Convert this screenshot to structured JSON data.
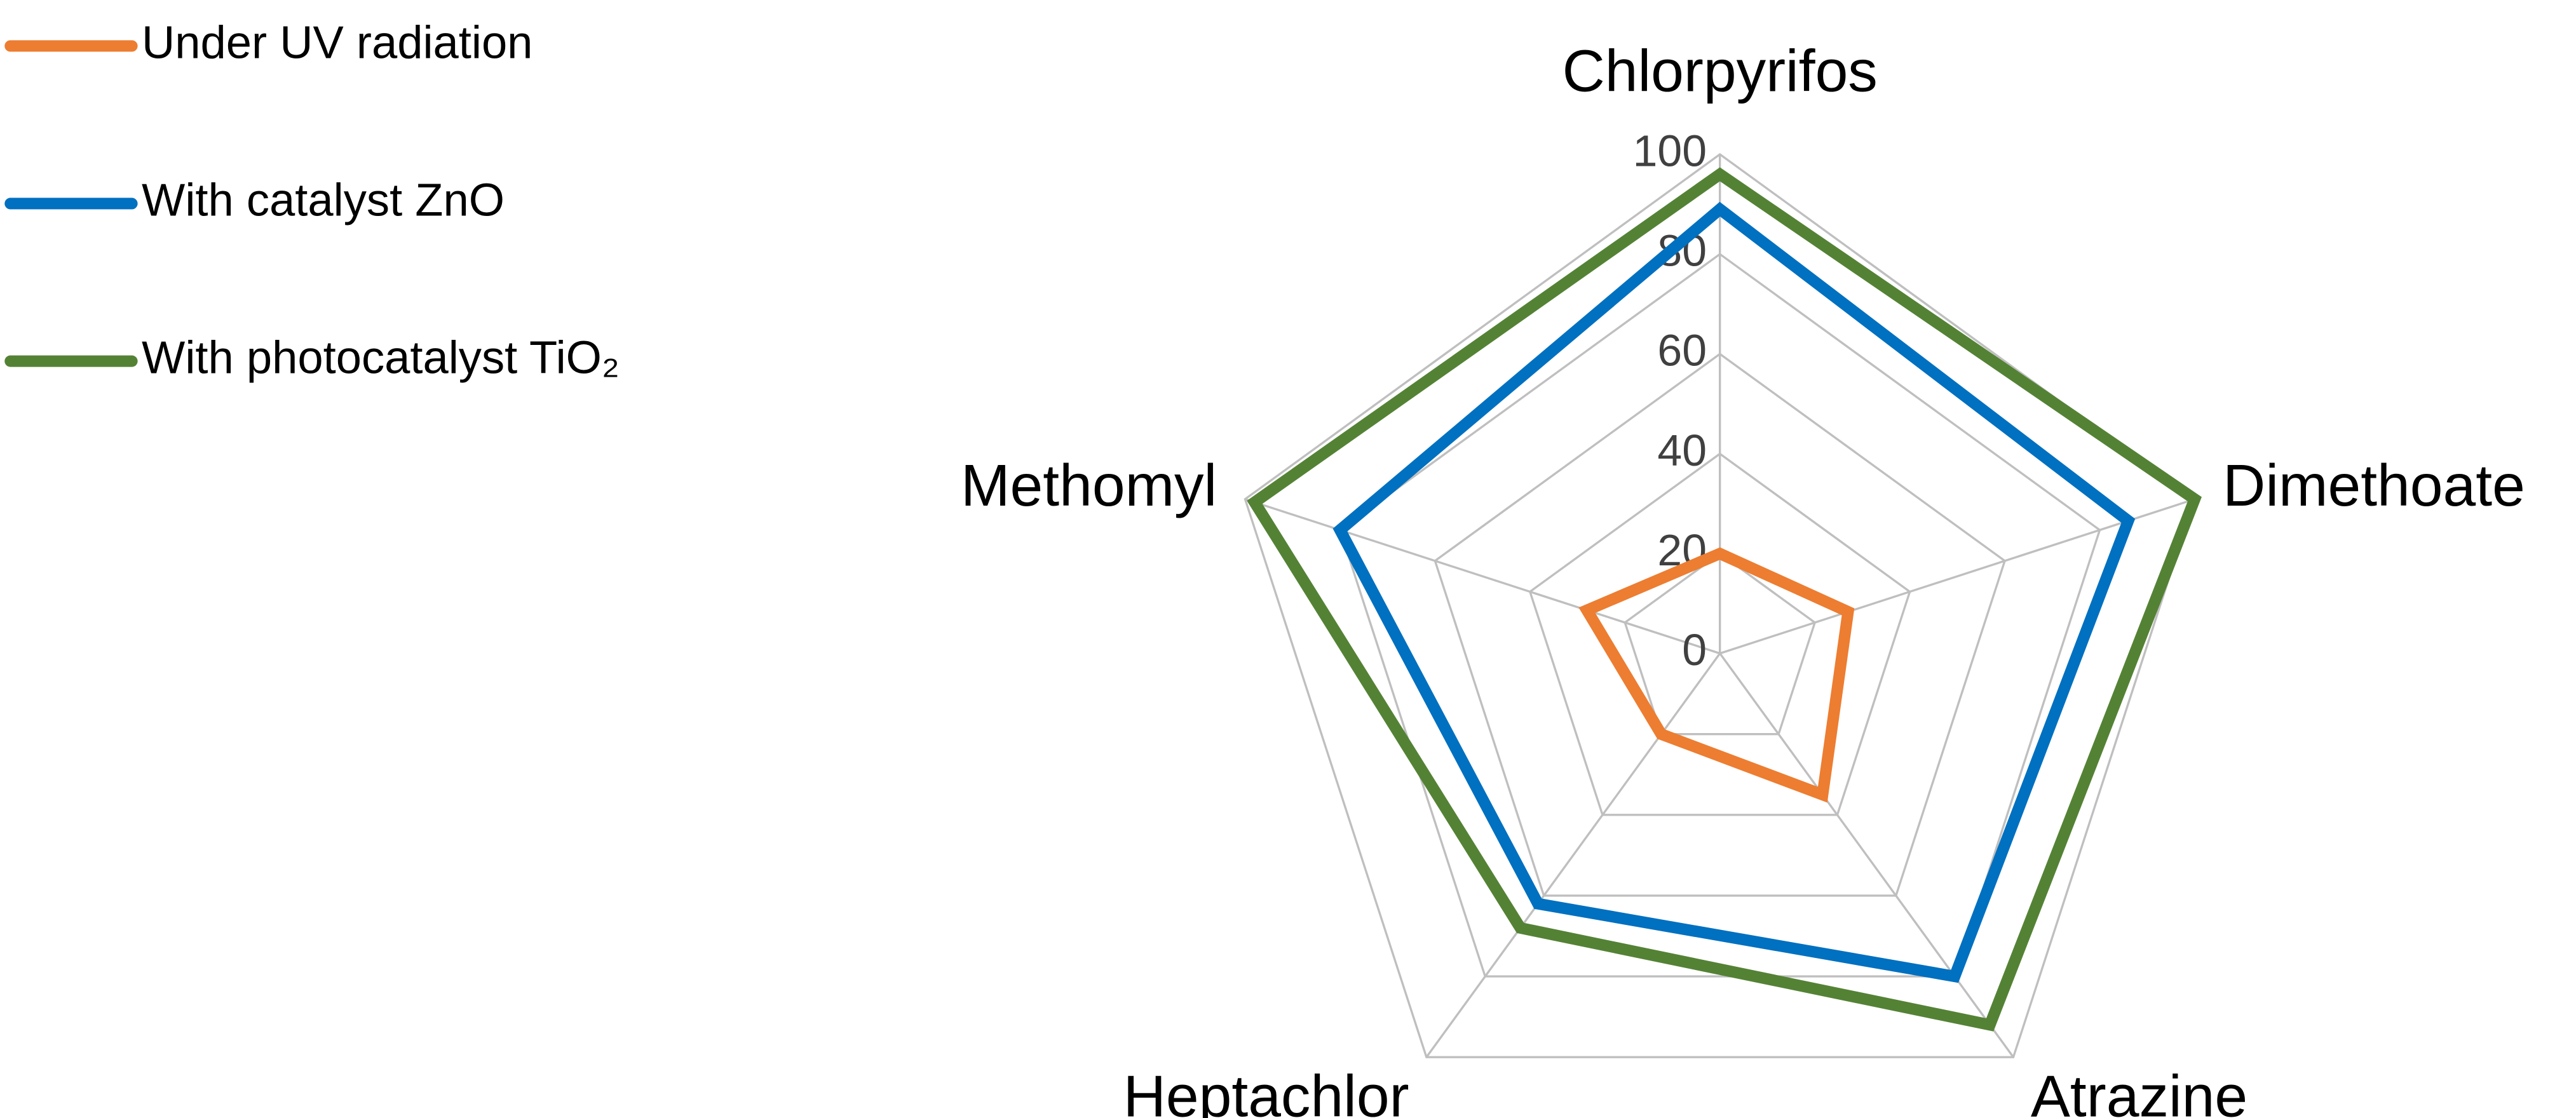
{
  "chart_data": {
    "type": "radar",
    "categories": [
      "Chlorpyrifos",
      "Dimethoate",
      "Atrazine",
      "Heptachlor",
      "Methomyl"
    ],
    "series": [
      {
        "name": "Under UV radiation",
        "color": "#ed7d31",
        "values": [
          20,
          27,
          35,
          20,
          28
        ]
      },
      {
        "name": "With catalyst ZnO",
        "color": "#0070c0",
        "values": [
          89,
          86,
          80,
          62,
          80
        ]
      },
      {
        "name": "With photocatalyst TiO₂",
        "color": "#548235",
        "values": [
          96,
          100,
          92,
          68,
          98
        ]
      }
    ],
    "ylim": [
      0,
      100
    ],
    "yticks": [
      0,
      20,
      40,
      60,
      80,
      100
    ],
    "grid": true,
    "legend": "top-left"
  }
}
